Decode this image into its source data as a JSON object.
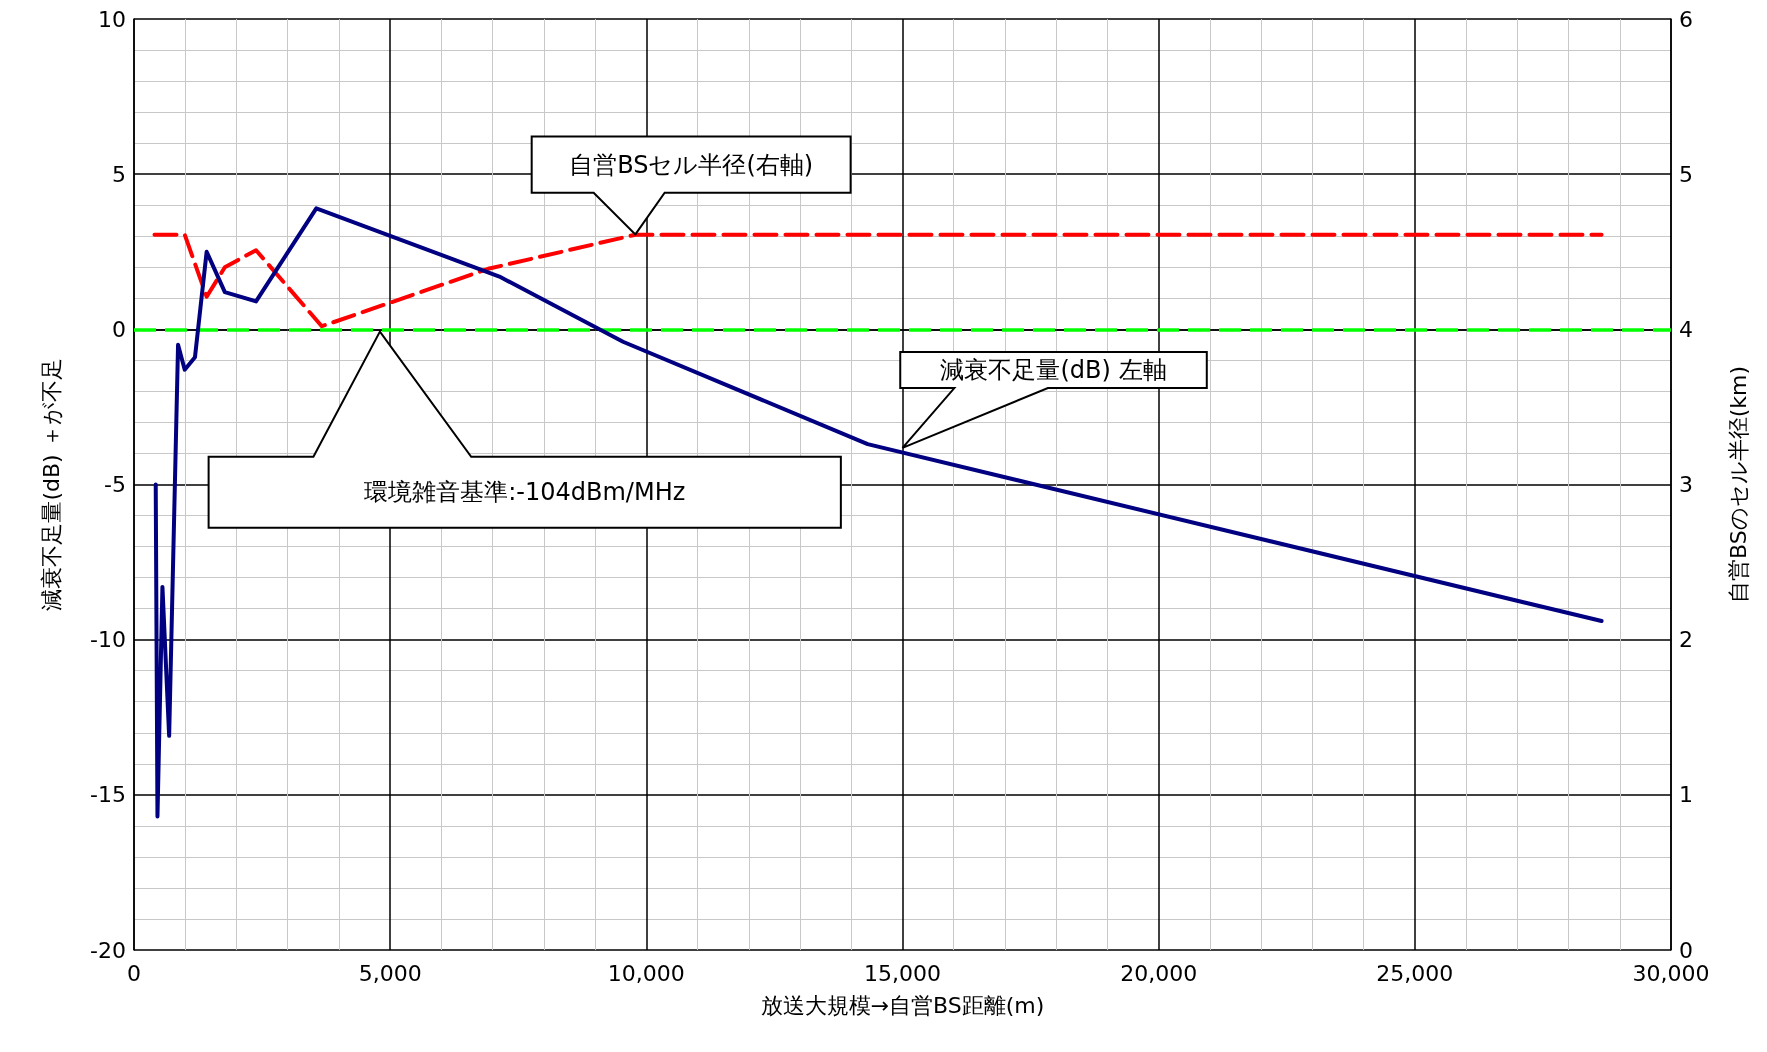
{
  "chart_data": {
    "type": "line",
    "xlabel": "放送大規模→自営BS距離(m)",
    "ylabel": "減衰不足量(dB) ＋が不足",
    "y2label": "自営BSのセル半径(km)",
    "xlim": [
      0,
      30000
    ],
    "xticks": [
      0,
      {
        "value": 5000,
        "label": "5,000"
      },
      {
        "value": 10000,
        "label": "10,000"
      },
      {
        "value": 15000,
        "label": "15,000"
      },
      {
        "value": 20000,
        "label": "20,000"
      },
      {
        "value": 25000,
        "label": "25,000"
      },
      {
        "value": 30000,
        "label": "30,000"
      }
    ],
    "ylim": [
      -20,
      10
    ],
    "yticks": [
      -20,
      -15,
      -10,
      -5,
      0,
      5,
      10
    ],
    "y2lim": [
      0,
      6
    ],
    "y2ticks": [
      0,
      1,
      2,
      3,
      4,
      5,
      6
    ],
    "grid": true,
    "marker": "none",
    "series": [
      {
        "color": "#000080",
        "line_style": "solid",
        "x": [
          424,
          458,
          555,
          686,
          860,
          990,
          1190,
          1418,
          1773,
          2382,
          3558,
          7132,
          9545,
          14320,
          28645
        ],
        "values": [
          -5.0,
          -15.7,
          -8.3,
          -13.1,
          -0.5,
          -1.3,
          -0.9,
          2.5,
          1.2,
          0.9,
          3.9,
          1.7,
          -0.4,
          -3.7,
          -9.4
        ]
      },
      {
        "color": "#ff0000",
        "line_style": "dashed",
        "axis": "y2",
        "x": [
          400,
          990,
          1418,
          1773,
          2382,
          3665,
          6913,
          9787,
          28645
        ],
        "values": [
          4.61,
          4.61,
          4.21,
          4.4,
          4.51,
          4.02,
          4.39,
          4.61,
          4.61
        ]
      }
    ],
    "ref_lines": [
      {
        "axis": "y",
        "value": 0,
        "color": "#00ff00",
        "line_style": "dashed"
      }
    ],
    "annotations": [
      "自営BSセル半径(右軸)",
      "減衰不足量(dB) 左軸",
      "環境雑音基準:-104dBm/MHz"
    ]
  }
}
